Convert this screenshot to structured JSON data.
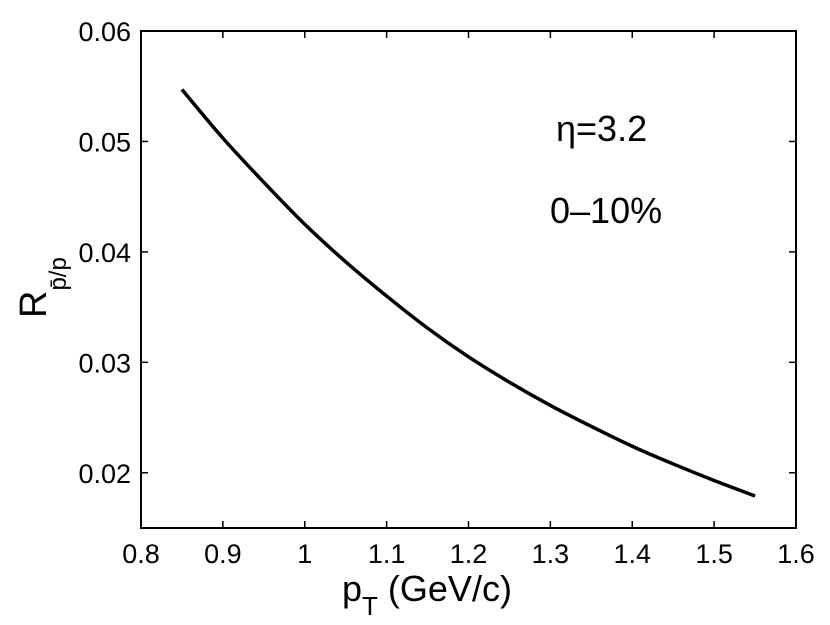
{
  "chart_data": {
    "type": "line",
    "xlim": [
      0.8,
      1.6
    ],
    "ylim": [
      0.015,
      0.06
    ],
    "x_ticks": [
      "0.8",
      "0.9",
      "1",
      "1.1",
      "1.2",
      "1.3",
      "1.4",
      "1.5",
      "1.6"
    ],
    "y_ticks": [
      "0.02",
      "0.03",
      "0.04",
      "0.05",
      "0.06"
    ],
    "xlabel": {
      "main": "p",
      "sub": "T",
      "rest": " (GeV/c)"
    },
    "ylabel": {
      "main": "R",
      "sub": "p̄/p"
    },
    "annotations": [
      "η=3.2",
      "0–10%"
    ],
    "grid": false,
    "series": [
      {
        "color": "#000000",
        "x": [
          0.85,
          0.9,
          0.95,
          1.0,
          1.05,
          1.1,
          1.15,
          1.2,
          1.25,
          1.3,
          1.35,
          1.4,
          1.45,
          1.5,
          1.55
        ],
        "y": [
          0.0547,
          0.0503,
          0.0463,
          0.0425,
          0.0391,
          0.036,
          0.0331,
          0.0305,
          0.0282,
          0.0261,
          0.0242,
          0.0224,
          0.0208,
          0.0193,
          0.0179
        ]
      }
    ]
  }
}
